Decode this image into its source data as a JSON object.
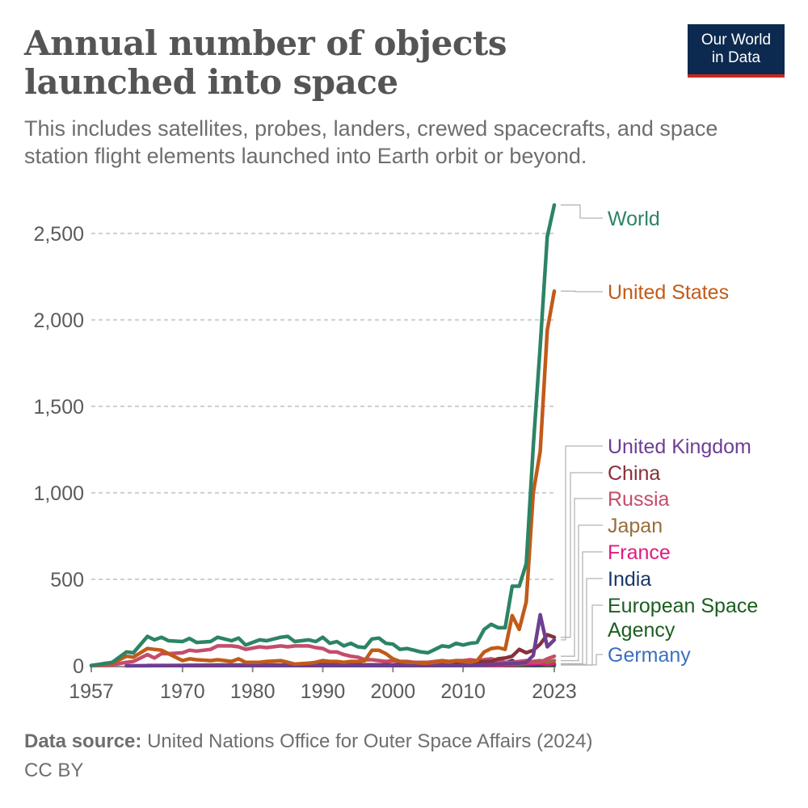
{
  "header": {
    "title": "Annual number of objects launched into space",
    "subtitle": "This includes satellites, probes, landers, crewed spacecrafts, and space station flight elements launched into Earth orbit or beyond.",
    "logo_line1": "Our World",
    "logo_line2": "in Data"
  },
  "footer": {
    "source_label": "Data source:",
    "source_text": "United Nations Office for Outer Space Affairs (2024)",
    "license": "CC BY"
  },
  "chart_data": {
    "type": "line",
    "title": "Annual number of objects launched into space",
    "xlabel": "",
    "ylabel": "",
    "xlim": [
      1957,
      2023
    ],
    "ylim": [
      0,
      2700
    ],
    "grid": true,
    "y_ticks": [
      0,
      500,
      1000,
      1500,
      2000,
      2500
    ],
    "y_tick_labels": [
      "0",
      "500",
      "1,000",
      "1,500",
      "2,000",
      "2,500"
    ],
    "x_ticks": [
      1957,
      1970,
      1980,
      1990,
      2000,
      2010,
      2023
    ],
    "x_tick_labels": [
      "1957",
      "1970",
      "1980",
      "1990",
      "2000",
      "2010",
      "2023"
    ],
    "legend": "right-labels",
    "series": [
      {
        "name": "World",
        "color": "#2c8465",
        "label_value": 2664,
        "points": [
          [
            1957,
            2
          ],
          [
            1960,
            20
          ],
          [
            1962,
            80
          ],
          [
            1963,
            75
          ],
          [
            1965,
            170
          ],
          [
            1966,
            150
          ],
          [
            1967,
            165
          ],
          [
            1968,
            145
          ],
          [
            1970,
            140
          ],
          [
            1971,
            158
          ],
          [
            1972,
            135
          ],
          [
            1974,
            140
          ],
          [
            1975,
            165
          ],
          [
            1977,
            145
          ],
          [
            1978,
            160
          ],
          [
            1979,
            120
          ],
          [
            1981,
            150
          ],
          [
            1982,
            145
          ],
          [
            1984,
            165
          ],
          [
            1985,
            170
          ],
          [
            1986,
            140
          ],
          [
            1988,
            150
          ],
          [
            1989,
            140
          ],
          [
            1990,
            165
          ],
          [
            1991,
            130
          ],
          [
            1992,
            140
          ],
          [
            1993,
            115
          ],
          [
            1994,
            130
          ],
          [
            1995,
            110
          ],
          [
            1996,
            105
          ],
          [
            1997,
            155
          ],
          [
            1998,
            160
          ],
          [
            1999,
            130
          ],
          [
            2000,
            125
          ],
          [
            2001,
            95
          ],
          [
            2002,
            100
          ],
          [
            2003,
            90
          ],
          [
            2004,
            80
          ],
          [
            2005,
            75
          ],
          [
            2006,
            95
          ],
          [
            2007,
            115
          ],
          [
            2008,
            110
          ],
          [
            2009,
            130
          ],
          [
            2010,
            120
          ],
          [
            2011,
            130
          ],
          [
            2012,
            135
          ],
          [
            2013,
            210
          ],
          [
            2014,
            240
          ],
          [
            2015,
            220
          ],
          [
            2016,
            220
          ],
          [
            2017,
            460
          ],
          [
            2018,
            460
          ],
          [
            2019,
            590
          ],
          [
            2020,
            1270
          ],
          [
            2021,
            1850
          ],
          [
            2022,
            2480
          ],
          [
            2023,
            2664
          ]
        ]
      },
      {
        "name": "United States",
        "color": "#c15b19",
        "label_value": 2166,
        "points": [
          [
            1957,
            0
          ],
          [
            1960,
            15
          ],
          [
            1962,
            55
          ],
          [
            1963,
            50
          ],
          [
            1965,
            100
          ],
          [
            1966,
            95
          ],
          [
            1967,
            90
          ],
          [
            1968,
            70
          ],
          [
            1970,
            30
          ],
          [
            1971,
            40
          ],
          [
            1972,
            35
          ],
          [
            1974,
            30
          ],
          [
            1975,
            35
          ],
          [
            1977,
            25
          ],
          [
            1978,
            40
          ],
          [
            1979,
            20
          ],
          [
            1981,
            20
          ],
          [
            1982,
            25
          ],
          [
            1984,
            30
          ],
          [
            1985,
            20
          ],
          [
            1986,
            10
          ],
          [
            1988,
            15
          ],
          [
            1989,
            20
          ],
          [
            1990,
            30
          ],
          [
            1991,
            25
          ],
          [
            1992,
            25
          ],
          [
            1993,
            20
          ],
          [
            1994,
            25
          ],
          [
            1995,
            25
          ],
          [
            1996,
            30
          ],
          [
            1997,
            90
          ],
          [
            1998,
            90
          ],
          [
            1999,
            70
          ],
          [
            2000,
            40
          ],
          [
            2001,
            25
          ],
          [
            2002,
            20
          ],
          [
            2003,
            20
          ],
          [
            2004,
            15
          ],
          [
            2005,
            15
          ],
          [
            2006,
            20
          ],
          [
            2007,
            25
          ],
          [
            2008,
            20
          ],
          [
            2009,
            30
          ],
          [
            2010,
            25
          ],
          [
            2011,
            20
          ],
          [
            2012,
            30
          ],
          [
            2013,
            80
          ],
          [
            2014,
            100
          ],
          [
            2015,
            105
          ],
          [
            2016,
            95
          ],
          [
            2017,
            290
          ],
          [
            2018,
            210
          ],
          [
            2019,
            370
          ],
          [
            2020,
            1000
          ],
          [
            2021,
            1240
          ],
          [
            2022,
            1940
          ],
          [
            2023,
            2166
          ]
        ]
      },
      {
        "name": "United Kingdom",
        "color": "#6d3e91",
        "label_value": 150,
        "points": [
          [
            1962,
            0
          ],
          [
            1970,
            2
          ],
          [
            1980,
            2
          ],
          [
            1990,
            2
          ],
          [
            2000,
            2
          ],
          [
            2010,
            2
          ],
          [
            2018,
            15
          ],
          [
            2019,
            20
          ],
          [
            2020,
            60
          ],
          [
            2021,
            295
          ],
          [
            2022,
            110
          ],
          [
            2023,
            150
          ]
        ]
      },
      {
        "name": "China",
        "color": "#883039",
        "label_value": 165,
        "points": [
          [
            1970,
            1
          ],
          [
            1980,
            2
          ],
          [
            1990,
            5
          ],
          [
            2000,
            5
          ],
          [
            2005,
            10
          ],
          [
            2010,
            20
          ],
          [
            2014,
            25
          ],
          [
            2015,
            40
          ],
          [
            2016,
            45
          ],
          [
            2017,
            55
          ],
          [
            2018,
            95
          ],
          [
            2019,
            75
          ],
          [
            2020,
            90
          ],
          [
            2021,
            125
          ],
          [
            2022,
            180
          ],
          [
            2023,
            165
          ]
        ]
      },
      {
        "name": "Russia",
        "color": "#c44d6a",
        "label_value": 55,
        "points": [
          [
            1957,
            2
          ],
          [
            1960,
            5
          ],
          [
            1962,
            20
          ],
          [
            1963,
            25
          ],
          [
            1965,
            65
          ],
          [
            1966,
            45
          ],
          [
            1967,
            70
          ],
          [
            1968,
            70
          ],
          [
            1970,
            75
          ],
          [
            1971,
            90
          ],
          [
            1972,
            85
          ],
          [
            1974,
            95
          ],
          [
            1975,
            115
          ],
          [
            1977,
            115
          ],
          [
            1978,
            110
          ],
          [
            1979,
            95
          ],
          [
            1981,
            110
          ],
          [
            1982,
            105
          ],
          [
            1984,
            115
          ],
          [
            1985,
            110
          ],
          [
            1986,
            115
          ],
          [
            1988,
            115
          ],
          [
            1989,
            105
          ],
          [
            1990,
            100
          ],
          [
            1991,
            80
          ],
          [
            1992,
            80
          ],
          [
            1993,
            65
          ],
          [
            1994,
            55
          ],
          [
            1995,
            50
          ],
          [
            1996,
            35
          ],
          [
            1997,
            35
          ],
          [
            1998,
            30
          ],
          [
            1999,
            25
          ],
          [
            2000,
            30
          ],
          [
            2001,
            25
          ],
          [
            2002,
            25
          ],
          [
            2003,
            20
          ],
          [
            2004,
            20
          ],
          [
            2005,
            20
          ],
          [
            2006,
            25
          ],
          [
            2007,
            30
          ],
          [
            2008,
            25
          ],
          [
            2009,
            30
          ],
          [
            2010,
            30
          ],
          [
            2011,
            35
          ],
          [
            2012,
            30
          ],
          [
            2013,
            35
          ],
          [
            2014,
            40
          ],
          [
            2015,
            30
          ],
          [
            2016,
            20
          ],
          [
            2017,
            20
          ],
          [
            2018,
            25
          ],
          [
            2019,
            30
          ],
          [
            2020,
            20
          ],
          [
            2021,
            20
          ],
          [
            2022,
            40
          ],
          [
            2023,
            55
          ]
        ]
      },
      {
        "name": "Japan",
        "color": "#996d39",
        "label_value": 30,
        "points": [
          [
            1970,
            2
          ],
          [
            1975,
            5
          ],
          [
            1980,
            5
          ],
          [
            1985,
            5
          ],
          [
            1990,
            10
          ],
          [
            1995,
            5
          ],
          [
            2000,
            5
          ],
          [
            2005,
            10
          ],
          [
            2008,
            15
          ],
          [
            2010,
            10
          ],
          [
            2014,
            20
          ],
          [
            2015,
            10
          ],
          [
            2018,
            10
          ],
          [
            2020,
            25
          ],
          [
            2021,
            30
          ],
          [
            2022,
            20
          ],
          [
            2023,
            30
          ]
        ]
      },
      {
        "name": "France",
        "color": "#e01b7e",
        "label_value": 12,
        "points": [
          [
            1965,
            2
          ],
          [
            1970,
            2
          ],
          [
            1980,
            2
          ],
          [
            1990,
            3
          ],
          [
            2000,
            3
          ],
          [
            2010,
            4
          ],
          [
            2015,
            4
          ],
          [
            2020,
            10
          ],
          [
            2021,
            12
          ],
          [
            2022,
            8
          ],
          [
            2023,
            12
          ]
        ]
      },
      {
        "name": "India",
        "color": "#18366b",
        "label_value": 8,
        "points": [
          [
            1975,
            1
          ],
          [
            1980,
            1
          ],
          [
            1990,
            1
          ],
          [
            2000,
            2
          ],
          [
            2005,
            3
          ],
          [
            2010,
            4
          ],
          [
            2015,
            5
          ],
          [
            2017,
            30
          ],
          [
            2018,
            8
          ],
          [
            2020,
            5
          ],
          [
            2022,
            10
          ],
          [
            2023,
            8
          ]
        ]
      },
      {
        "name": "European Space Agency",
        "color": "#1b5e20",
        "label_value": 4,
        "points": [
          [
            1970,
            1
          ],
          [
            1980,
            2
          ],
          [
            1990,
            2
          ],
          [
            2000,
            2
          ],
          [
            2010,
            3
          ],
          [
            2020,
            3
          ],
          [
            2023,
            4
          ]
        ]
      },
      {
        "name": "Germany",
        "color": "#3d6fc0",
        "label_value": 5,
        "points": [
          [
            1970,
            1
          ],
          [
            1980,
            1
          ],
          [
            1990,
            2
          ],
          [
            2000,
            2
          ],
          [
            2010,
            3
          ],
          [
            2017,
            10
          ],
          [
            2020,
            5
          ],
          [
            2023,
            5
          ]
        ]
      }
    ]
  }
}
